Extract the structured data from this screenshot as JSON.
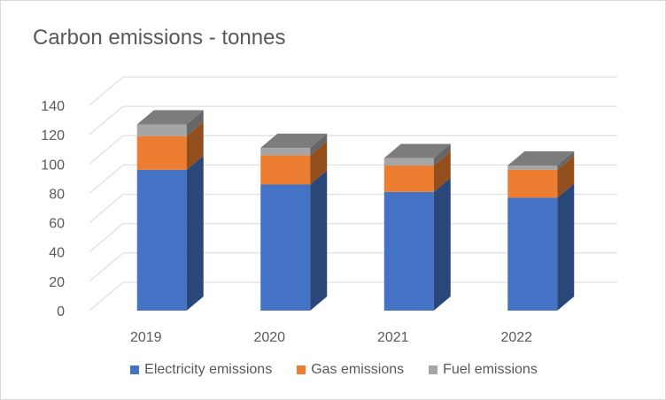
{
  "chart_data": {
    "type": "bar",
    "stacked": true,
    "three_d": true,
    "title": "Carbon emissions - tonnes",
    "categories": [
      "2019",
      "2020",
      "2021",
      "2022"
    ],
    "series": [
      {
        "name": "Electricity emissions",
        "values": [
          96,
          86,
          81,
          77
        ],
        "color": "#4472c4"
      },
      {
        "name": "Gas emissions",
        "values": [
          23,
          20,
          18,
          19
        ],
        "color": "#ed7d31"
      },
      {
        "name": "Fuel emissions",
        "values": [
          8,
          5,
          5,
          3
        ],
        "color": "#a5a5a5"
      }
    ],
    "y_ticks": [
      "0",
      "20",
      "40",
      "60",
      "80",
      "100",
      "120",
      "140"
    ],
    "ylim": [
      0,
      140
    ],
    "grid": true,
    "legend_position": "bottom"
  }
}
